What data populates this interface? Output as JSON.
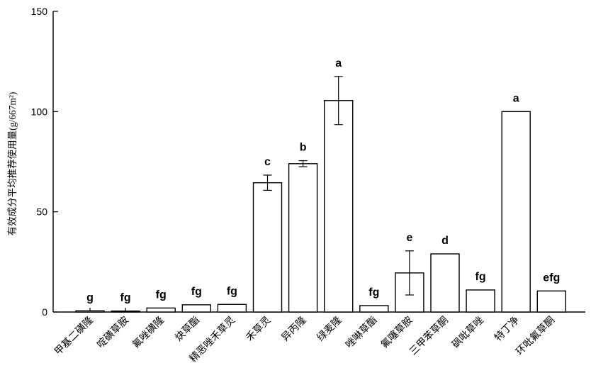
{
  "chart_data": {
    "type": "bar",
    "ylabel": "有效成分平均推荐使用量(g/667m²)",
    "ylim": [
      0,
      150
    ],
    "yticks": [
      0,
      50,
      100,
      150
    ],
    "categories": [
      "甲基二磺隆",
      "啶磺草胺",
      "氟唑磺隆",
      "炔草酯",
      "精恶唑禾草灵",
      "禾草灵",
      "异丙隆",
      "绿麦隆",
      "唑啉草酯",
      "氟噻草胺",
      "三甲苯草酮",
      "砜吡草唑",
      "特丁净",
      "环吡氟草酮"
    ],
    "values": [
      0.6,
      0.5,
      2.0,
      3.6,
      3.8,
      64.5,
      74.0,
      105.5,
      3.2,
      19.5,
      29.0,
      11.0,
      100.0,
      10.5
    ],
    "errors": [
      null,
      null,
      null,
      null,
      null,
      3.8,
      1.5,
      12.0,
      null,
      11.0,
      null,
      null,
      null,
      null
    ],
    "significance": [
      "g",
      "fg",
      "fg",
      "fg",
      "fg",
      "c",
      "b",
      "a",
      "fg",
      "e",
      "d",
      "fg",
      "a",
      "efg"
    ]
  }
}
